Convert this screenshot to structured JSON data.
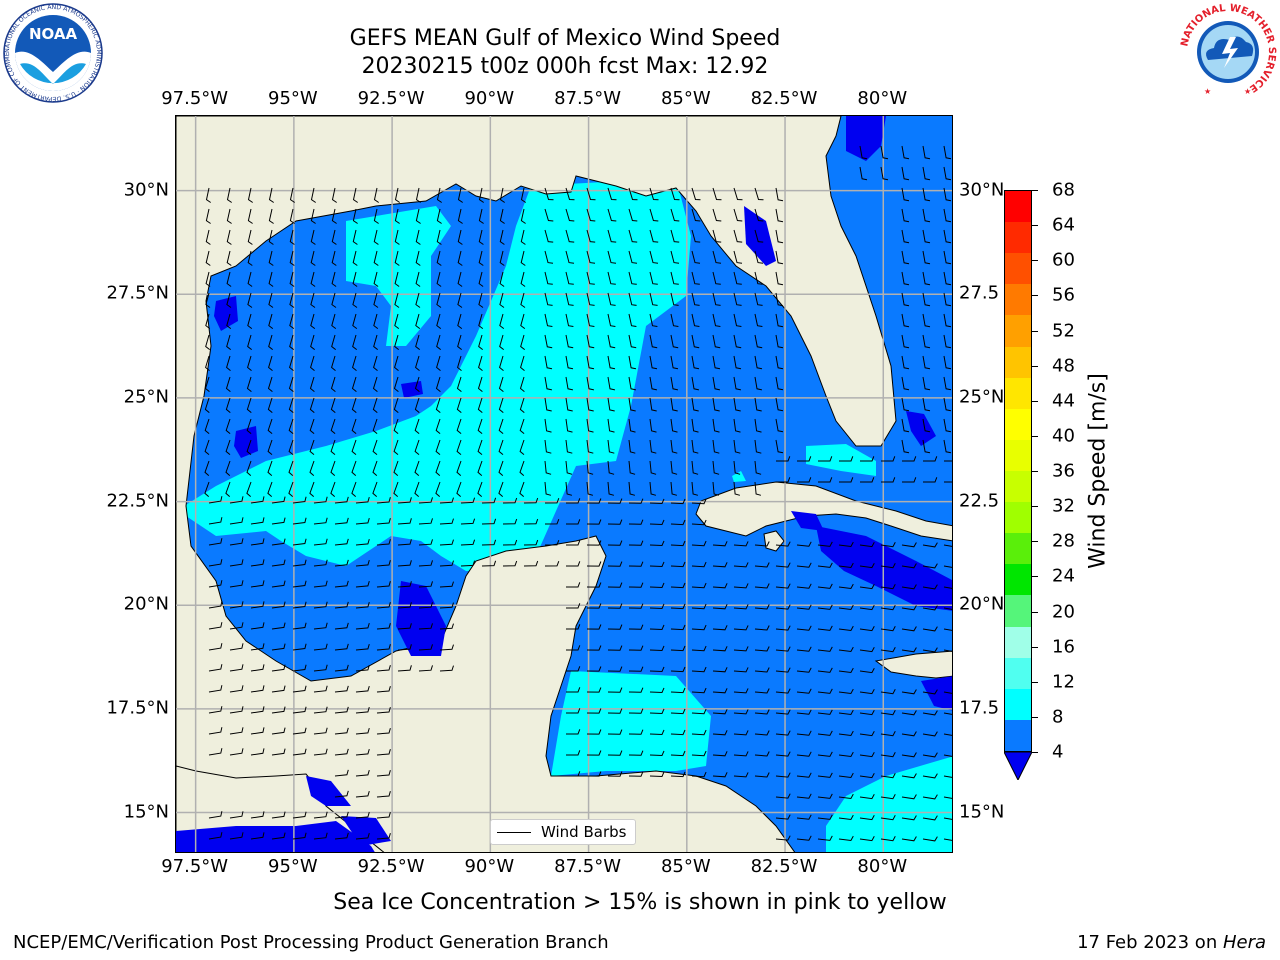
{
  "title": "GEFS MEAN Gulf of Mexico Wind Speed",
  "subtitle": "20230215 t00z 000h fcst   Max: 12.92",
  "lon_ticks_top": [
    "97.5°W",
    "95°W",
    "92.5°W",
    "90°W",
    "87.5°W",
    "85°W",
    "82.5°W",
    "80°W"
  ],
  "lon_ticks_bottom": [
    "97.5°W",
    "95°W",
    "92.5°W",
    "90°W",
    "87.5°W",
    "85°W",
    "82.5°W",
    "80°W"
  ],
  "lat_ticks_left": [
    "30°N",
    "27.5°N",
    "25°N",
    "22.5°N",
    "20°N",
    "17.5°N",
    "15°N"
  ],
  "lat_ticks_right": [
    "30°N",
    "27.5",
    "25°N",
    "22.5",
    "20°N",
    "17.5",
    "15°N"
  ],
  "map_extent": {
    "lon": [
      -98,
      -78.2
    ],
    "lat": [
      14,
      31.8
    ]
  },
  "legend_label": "Wind Barbs",
  "colorbar": {
    "label": "Wind Speed [m/s]",
    "ticks": [
      "68",
      "64",
      "60",
      "56",
      "52",
      "48",
      "44",
      "40",
      "36",
      "32",
      "28",
      "24",
      "20",
      "16",
      "12",
      "8",
      "4"
    ],
    "colors": [
      "#ff0000",
      "#ff2a00",
      "#ff5000",
      "#ff7a00",
      "#ffa000",
      "#ffc400",
      "#ffe600",
      "#ffff00",
      "#e8ff00",
      "#c8ff00",
      "#a0ff00",
      "#5aef0a",
      "#00e600",
      "#55f57a",
      "#a0ffe8",
      "#50fff0",
      "#00ffff",
      "#0a7aff"
    ],
    "under_color": "#0000f0"
  },
  "colors": {
    "land": "#efefdd",
    "wind_4_8": "#0a7aff",
    "wind_8_12": "#00ffff",
    "wind_below_4": "#0000f0",
    "grid": "#b0b0b0"
  },
  "footer_note": "Sea Ice Concentration > 15% is shown in pink to yellow",
  "credit": "NCEP/EMC/Verification Post Processing Product Generation Branch",
  "date_prefix": "17 Feb 2023 on ",
  "date_host": "Hera",
  "logos": {
    "noaa": {
      "text": "NOAA",
      "ring": "NATIONAL OCEANIC AND ATMOSPHERIC ADMINISTRATION · U.S. DEPARTMENT OF COMMERCE"
    },
    "nws": {
      "ring": "NATIONAL WEATHER SERVICE"
    }
  }
}
